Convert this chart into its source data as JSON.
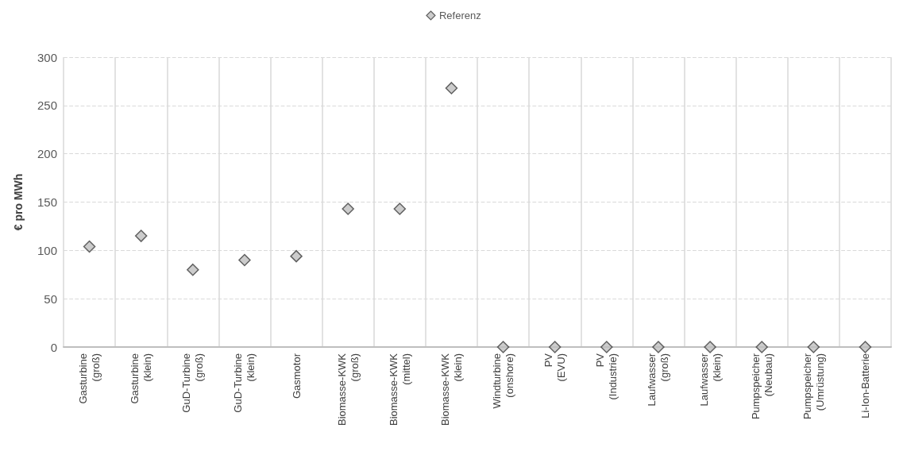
{
  "chart_data": {
    "type": "scatter",
    "ylabel": "€ pro MWh",
    "categories": [
      "Gasturbine (groß)",
      "Gasturbine (klein)",
      "GuD-Turbine (groß)",
      "GuD-Turbine (klein)",
      "Gasmotor",
      "Biomasse-KWK (groß)",
      "Biomasse-KWK (mittel)",
      "Biomasse-KWK (klein)",
      "Windturbine (onshore)",
      "PV (EVU)",
      "PV (Industrie)",
      "Laufwasser (groß)",
      "Laufwasser (klein)",
      "Pumpspeicher (Neubau)",
      "Pumpspeicher (Umrüstung)",
      "Li-Ion-Batterie"
    ],
    "series": [
      {
        "name": "Referenz",
        "color": "#bfbfbf",
        "values": [
          104,
          115,
          80,
          90,
          94,
          143,
          143,
          268,
          0,
          0,
          0,
          0,
          0,
          0,
          0,
          0
        ]
      }
    ],
    "ylim": [
      0,
      300
    ],
    "yticks": [
      0,
      50,
      100,
      150,
      200,
      250,
      300
    ],
    "grid": true,
    "legend": "top",
    "marker": "diamond"
  }
}
